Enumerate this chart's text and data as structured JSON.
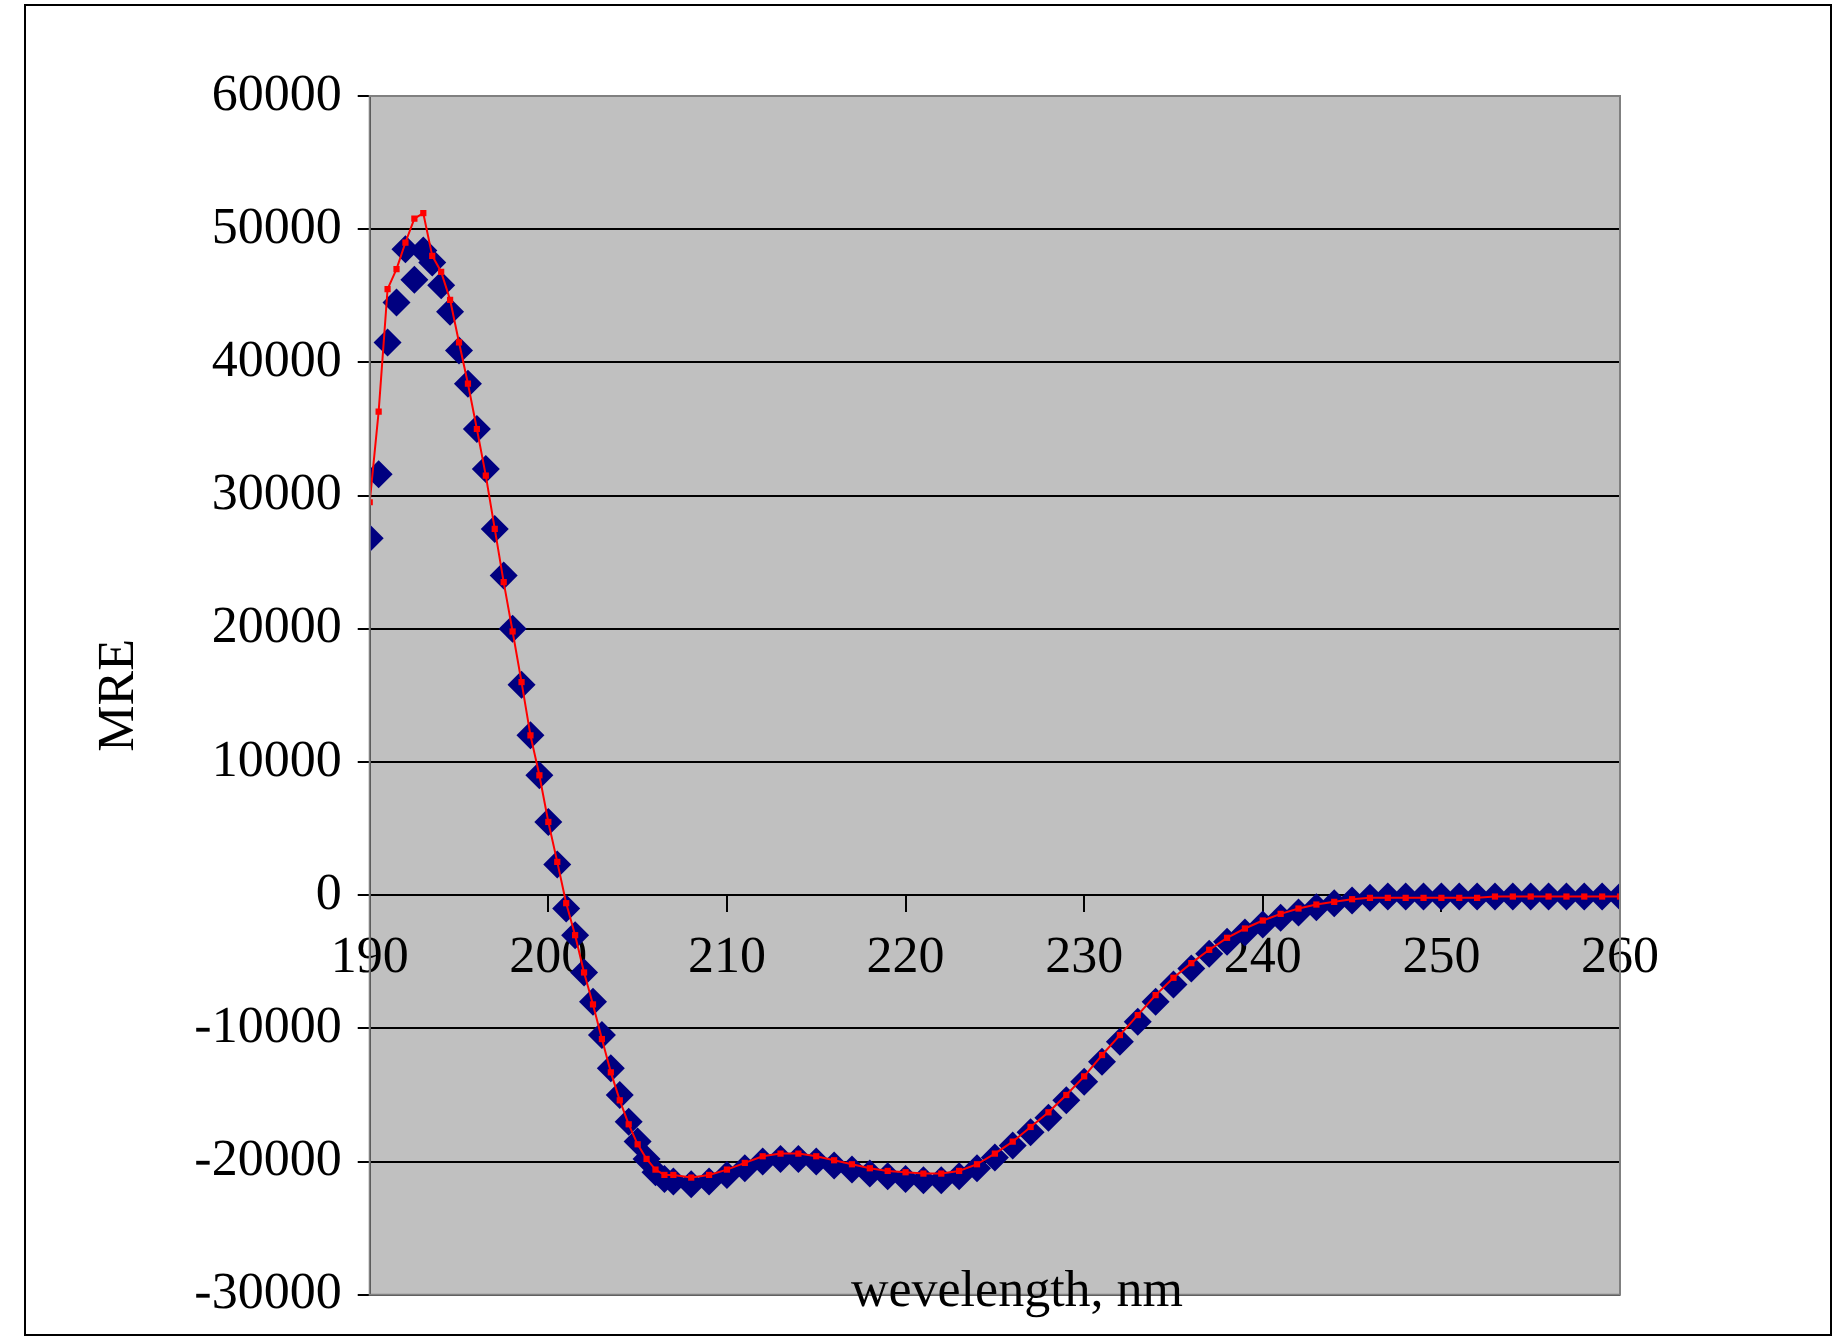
{
  "chart_data": {
    "type": "scatter",
    "xlabel": "wevelength, nm",
    "ylabel": "MRE",
    "xlim": [
      190,
      260
    ],
    "xticks": [
      190,
      200,
      210,
      220,
      230,
      240,
      250,
      260
    ],
    "ylim": [
      -30000,
      60000
    ],
    "yticks": [
      -30000,
      -20000,
      -10000,
      0,
      10000,
      20000,
      30000,
      40000,
      50000,
      60000
    ],
    "grid": "y",
    "legend": false,
    "x": [
      190,
      190.5,
      191,
      191.5,
      192,
      192.5,
      193,
      193.5,
      194,
      194.5,
      195,
      195.5,
      196,
      196.5,
      197,
      197.5,
      198,
      198.5,
      199,
      199.5,
      200,
      200.5,
      201,
      201.5,
      202,
      202.5,
      203,
      203.5,
      204,
      204.5,
      205,
      205.5,
      206,
      206.5,
      207,
      208,
      209,
      210,
      211,
      212,
      213,
      214,
      215,
      216,
      217,
      218,
      219,
      220,
      221,
      222,
      223,
      224,
      225,
      226,
      227,
      228,
      229,
      230,
      231,
      232,
      233,
      234,
      235,
      236,
      237,
      238,
      239,
      240,
      241,
      242,
      243,
      244,
      245,
      246,
      247,
      248,
      249,
      250,
      251,
      252,
      253,
      254,
      255,
      256,
      257,
      258,
      259,
      260
    ],
    "series": [
      {
        "type": "scatter",
        "marker": "diamond",
        "color": "#000080",
        "values": [
          26800,
          31600,
          41500,
          44500,
          48500,
          46200,
          48400,
          47500,
          45800,
          43800,
          40900,
          38400,
          35000,
          32000,
          27500,
          24000,
          20000,
          15800,
          12000,
          9000,
          5500,
          2300,
          -1000,
          -3000,
          -5800,
          -8000,
          -10500,
          -13000,
          -15000,
          -17000,
          -18500,
          -19800,
          -20800,
          -21300,
          -21500,
          -21700,
          -21500,
          -21000,
          -20500,
          -20000,
          -19800,
          -19800,
          -20000,
          -20300,
          -20600,
          -20900,
          -21100,
          -21300,
          -21400,
          -21400,
          -21100,
          -20500,
          -19700,
          -18800,
          -17800,
          -16700,
          -15400,
          -14000,
          -12500,
          -11000,
          -9500,
          -8000,
          -6700,
          -5500,
          -4400,
          -3500,
          -2800,
          -2200,
          -1700,
          -1300,
          -900,
          -600,
          -400,
          -200,
          -100,
          -100,
          -100,
          -100,
          -100,
          -100,
          -100,
          -100,
          -100,
          -100,
          -100,
          -100,
          -100,
          -100
        ]
      },
      {
        "type": "line",
        "marker": "square",
        "line_style": "solid",
        "color": "#ff0000",
        "values": [
          29500,
          36300,
          45500,
          47000,
          49000,
          50800,
          51200,
          48000,
          46800,
          44700,
          41500,
          38400,
          35000,
          31500,
          27500,
          23500,
          19800,
          16000,
          12000,
          9000,
          5500,
          2500,
          -600,
          -3000,
          -5800,
          -8200,
          -10800,
          -13300,
          -15400,
          -17200,
          -18700,
          -19800,
          -20600,
          -21000,
          -21000,
          -21200,
          -21000,
          -20600,
          -20100,
          -19600,
          -19400,
          -19400,
          -19600,
          -19900,
          -20200,
          -20500,
          -20700,
          -20800,
          -20900,
          -20900,
          -20700,
          -20200,
          -19400,
          -18500,
          -17400,
          -16300,
          -15000,
          -13600,
          -12000,
          -10500,
          -9000,
          -7500,
          -6200,
          -5100,
          -4100,
          -3200,
          -2500,
          -1900,
          -1400,
          -1000,
          -700,
          -500,
          -300,
          -200,
          -200,
          -200,
          -200,
          -200,
          -200,
          -200,
          -100,
          -100,
          -100,
          -100,
          -100,
          -100,
          -100,
          -100
        ]
      }
    ]
  }
}
